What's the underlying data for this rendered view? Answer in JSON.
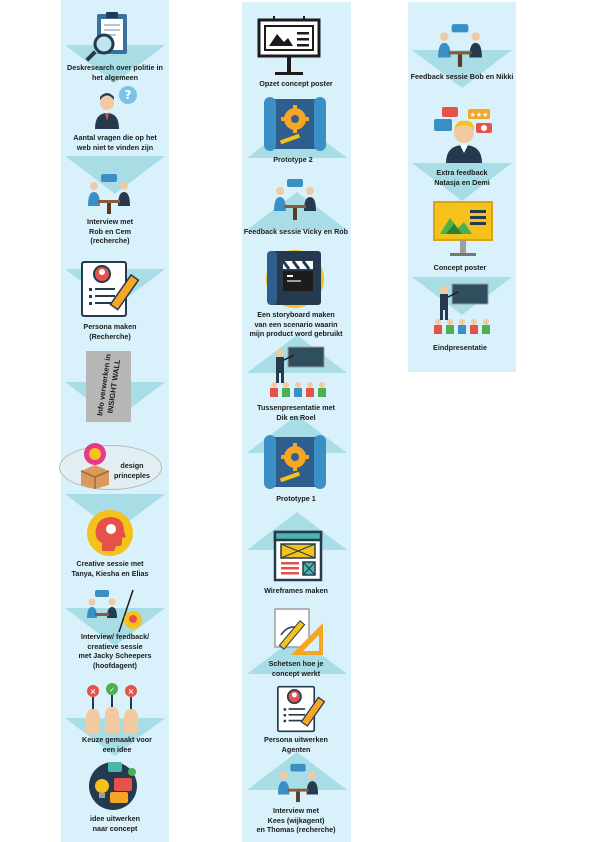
{
  "columns": {
    "left": {
      "steps": [
        {
          "label": "Deskresearch over politie in\nhet algemeen",
          "icon": "clipboard-magnifier-icon"
        },
        {
          "label": "Aantal vragen die op het\nweb niet te vinden zijn",
          "icon": "thinking-person-icon"
        },
        {
          "label": "Interview met\nRob en Cem\n(recherche)",
          "icon": "interview-icon"
        },
        {
          "label": "Persona maken\n(Recherche)",
          "icon": "persona-document-icon"
        },
        {
          "label": "Info verwerken in\nINSIGHT WALL",
          "icon": "insight-wall-note-icon"
        },
        {
          "label": "design\nprinceples",
          "icon": "idea-box-icon"
        },
        {
          "label": "Creative sessie met\nTanya, Kiesha en Elias",
          "icon": "creative-head-icon"
        },
        {
          "label": "Interview/ feedback/\ncreatieve sessie\nmet Jacky Scheepers\n(hoofdagent)",
          "icon": "interview-creative-icon"
        },
        {
          "label": "Keuze gemaakt voor\neen idee",
          "icon": "choice-hands-icon"
        },
        {
          "label": "idee uitwerken\nnaar concept",
          "icon": "concept-ideas-icon"
        }
      ]
    },
    "middle": {
      "steps": [
        {
          "label": "Opzet concept poster",
          "icon": "billboard-icon"
        },
        {
          "label": "Prototype 2",
          "icon": "blueprint-gear-icon"
        },
        {
          "label": "Feedback sessie Vicky en Rob",
          "icon": "meeting-icon"
        },
        {
          "label": "Een storyboard maken\nvan een scenario waarin\nmijn product word gebruikt",
          "icon": "storyboard-clapper-icon"
        },
        {
          "label": "Tussenpresentatie met\nDik en Roel",
          "icon": "presentation-icon"
        },
        {
          "label": "Prototype 1",
          "icon": "blueprint-gear-icon"
        },
        {
          "label": "Wireframes maken",
          "icon": "wireframe-icon"
        },
        {
          "label": "Schetsen hoe je\nconcept werkt",
          "icon": "sketch-tools-icon"
        },
        {
          "label": "Persona uitwerken\nAgenten",
          "icon": "persona-document-icon"
        },
        {
          "label": "Interview met\nKees (wijkagent)\nen Thomas (recherche)",
          "icon": "interview-icon"
        }
      ]
    },
    "right": {
      "steps": [
        {
          "label": "Feedback sessie Bob en Nikki",
          "icon": "meeting-icon"
        },
        {
          "label": "Extra feedback\nNatasja en Demi",
          "icon": "feedback-person-icon"
        },
        {
          "label": "Concept poster",
          "icon": "billboard-yellow-icon"
        },
        {
          "label": "Eindpresentatie",
          "icon": "presentation-icon"
        }
      ]
    }
  },
  "colors": {
    "column_bg": "#d9f1fb",
    "arrow": "#a8dde6",
    "accent_yellow": "#f5c21b",
    "accent_blue": "#3a8fc4",
    "accent_navy": "#263a4f",
    "accent_red": "#e5524a"
  }
}
